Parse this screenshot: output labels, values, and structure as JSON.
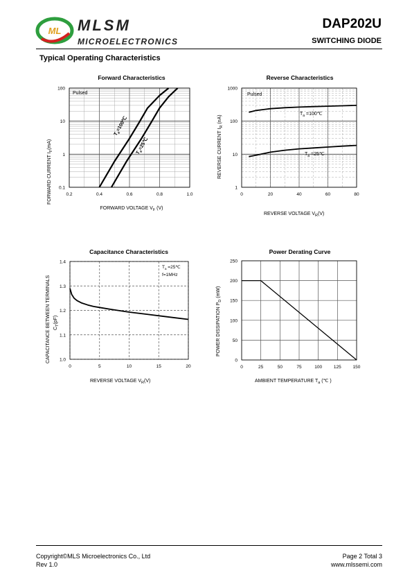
{
  "header": {
    "brand": "MLSM",
    "brand_sub": "MICROELECTRONICS",
    "part_number": "DAP202U",
    "description": "SWITCHING DIODE",
    "logo_letters": "ML"
  },
  "section_title": "Typical Operating Characteristics",
  "colors": {
    "green": "#2e9e3e",
    "red": "#d42020",
    "grid": "#555555"
  },
  "charts": {
    "forward": {
      "title": "Forward  Characteristics",
      "note": "Pulsed",
      "ylabel": "FORWARD CURRENT  I",
      "ylabel_sub": "F",
      "ylabel_unit": "(mA)",
      "xlabel": "FORWARD VOLTAGE  V",
      "xlabel_sub": "F",
      "xlabel_unit": " (V)",
      "curve1_label": "T",
      "curve1_sub": "a",
      "curve1_val": "=100℃",
      "curve2_label": "T",
      "curve2_sub": "a",
      "curve2_val": "=25℃"
    },
    "reverse": {
      "title": "Reverse  Characteristics",
      "note": "Pulsed",
      "ylabel": "REVERSE CURRENT  I",
      "ylabel_sub": "R",
      "ylabel_unit": " (nA)",
      "xlabel": "REVERSE VOLTAGE     V",
      "xlabel_sub": "R",
      "xlabel_unit": "(V)",
      "curve1_label": "T",
      "curve1_sub": "a",
      "curve1_val": " =100℃",
      "curve2_label": "T",
      "curve2_sub": "a",
      "curve2_val": " =25℃"
    },
    "capacitance": {
      "title": "Capacitance Characteristics",
      "ylabel1": "CAPACITANCE BETWEEN TERMINALS",
      "ylabel2": "C",
      "ylabel2_sub": "T",
      "ylabel2_unit": "(pF)",
      "xlabel": "REVERSE VOLTAGE   V",
      "xlabel_sub": "R",
      "xlabel_unit": "(V)",
      "note1": "T",
      "note1_sub": "a",
      "note1_val": " =25℃",
      "note2": "f=1MHz"
    },
    "power": {
      "title": "Power Derating Curve",
      "ylabel": "POWER  DISSIPATION  P",
      "ylabel_sub": "D",
      "ylabel_unit": "  (mW)",
      "xlabel": "AMBIENT TEMPERATURE     T",
      "xlabel_sub": "a",
      "xlabel_unit": "  (℃ )"
    }
  },
  "chart_data": [
    {
      "type": "line",
      "title": "Forward  Characteristics",
      "xlabel": "FORWARD VOLTAGE  VF (V)",
      "ylabel": "FORWARD CURRENT  IF(mA)",
      "xlim": [
        0.2,
        1.0
      ],
      "ylim": [
        0.1,
        100
      ],
      "yscale": "log",
      "xticks": [
        "0.2",
        "0.4",
        "0.6",
        "0.8",
        "1.0"
      ],
      "yticks": [
        "0.1",
        "1",
        "10",
        "100"
      ],
      "series": [
        {
          "name": "Ta =100℃",
          "x": [
            0.4,
            0.5,
            0.6,
            0.66,
            0.72,
            0.8,
            0.86
          ],
          "y": [
            0.1,
            0.6,
            3.0,
            8.5,
            25,
            60,
            100
          ]
        },
        {
          "name": "Ta =25℃",
          "x": [
            0.48,
            0.58,
            0.68,
            0.74,
            0.8,
            0.86,
            0.92
          ],
          "y": [
            0.1,
            0.6,
            3.0,
            8.5,
            25,
            55,
            100
          ]
        }
      ]
    },
    {
      "type": "line",
      "title": "Reverse  Characteristics",
      "xlabel": "REVERSE VOLTAGE VR(V)",
      "ylabel": "REVERSE CURRENT  IR (nA)",
      "xlim": [
        0,
        80
      ],
      "ylim": [
        1,
        1000
      ],
      "yscale": "log",
      "xticks": [
        "0",
        "20",
        "40",
        "60",
        "80"
      ],
      "yticks": [
        "1",
        "10",
        "100",
        "1000"
      ],
      "series": [
        {
          "name": "Ta =100℃",
          "x": [
            5,
            10,
            20,
            30,
            40,
            50,
            60,
            70,
            80
          ],
          "y": [
            185,
            210,
            238,
            255,
            266,
            276,
            284,
            292,
            300
          ]
        },
        {
          "name": "Ta =25℃",
          "x": [
            5,
            10,
            20,
            30,
            40,
            50,
            60,
            70,
            80
          ],
          "y": [
            8.5,
            9.3,
            11.5,
            13.2,
            14.5,
            15.5,
            16.5,
            17.5,
            18.5
          ]
        }
      ]
    },
    {
      "type": "line",
      "title": "Capacitance Characteristics",
      "xlabel": "REVERSE VOLTAGE VR(V)",
      "ylabel": "CAPACITANCE BETWEEN TERMINALS CT(pF)",
      "xlim": [
        0,
        20
      ],
      "ylim": [
        1.0,
        1.4
      ],
      "xticks": [
        "0",
        "5",
        "10",
        "15",
        "20"
      ],
      "yticks": [
        "1.0",
        "1.1",
        "1.2",
        "1.3",
        "1.4"
      ],
      "series": [
        {
          "name": "",
          "x": [
            0,
            0.3,
            0.7,
            1.2,
            2,
            3,
            4,
            5,
            7,
            10,
            13,
            16,
            20
          ],
          "y": [
            1.29,
            1.265,
            1.25,
            1.24,
            1.23,
            1.222,
            1.216,
            1.212,
            1.204,
            1.193,
            1.184,
            1.175,
            1.163
          ]
        }
      ]
    },
    {
      "type": "line",
      "title": "Power Derating Curve",
      "xlabel": "AMBIENT TEMPERATURE Ta (℃)",
      "ylabel": "POWER  DISSIPATION  PD (mW)",
      "xlim": [
        0,
        150
      ],
      "ylim": [
        0,
        250
      ],
      "xticks": [
        "0",
        "25",
        "50",
        "75",
        "100",
        "125",
        "150"
      ],
      "yticks": [
        "0",
        "50",
        "100",
        "150",
        "200",
        "250"
      ],
      "series": [
        {
          "name": "",
          "x": [
            0,
            25,
            150
          ],
          "y": [
            200,
            200,
            0
          ]
        }
      ]
    }
  ],
  "footer": {
    "copyright": "Copyright©MLS Microelectronics Co., Ltd",
    "rev": "Rev 1.0",
    "page": "Page 2 Total 3",
    "website": "www.mlssemi.com"
  }
}
